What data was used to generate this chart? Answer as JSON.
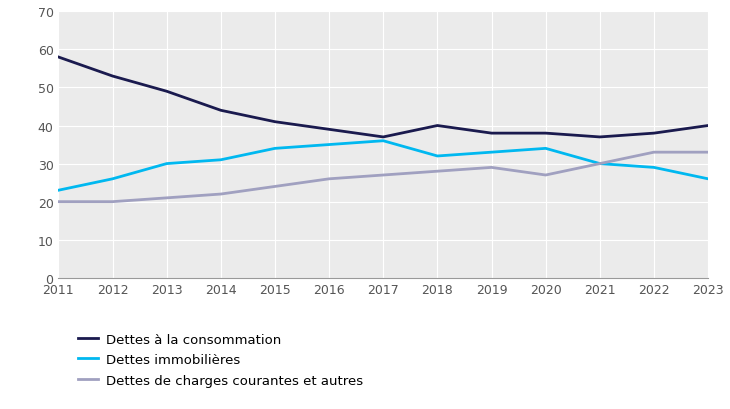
{
  "years": [
    2011,
    2012,
    2013,
    2014,
    2015,
    2016,
    2017,
    2018,
    2019,
    2020,
    2021,
    2022,
    2023
  ],
  "consommation": [
    58,
    53,
    49,
    44,
    41,
    39,
    37,
    40,
    38,
    38,
    37,
    38,
    40
  ],
  "immobilieres": [
    23,
    26,
    30,
    31,
    34,
    35,
    36,
    32,
    33,
    34,
    30,
    29,
    26
  ],
  "charges_courantes": [
    20,
    20,
    21,
    22,
    24,
    26,
    27,
    28,
    29,
    27,
    30,
    33,
    33
  ],
  "color_consommation": "#1a1a4e",
  "color_immobilieres": "#00b8f0",
  "color_charges_courantes": "#a0a0c0",
  "legend_labels": [
    "Dettes à la consommation",
    "Dettes immobilières",
    "Dettes de charges courantes et autres"
  ],
  "ylim": [
    0,
    70
  ],
  "yticks": [
    0,
    10,
    20,
    30,
    40,
    50,
    60,
    70
  ],
  "plot_bg_color": "#ebebeb",
  "figure_bg_color": "#ffffff",
  "grid_color": "#ffffff",
  "linewidth": 2.0,
  "tick_fontsize": 9,
  "legend_fontsize": 9.5
}
